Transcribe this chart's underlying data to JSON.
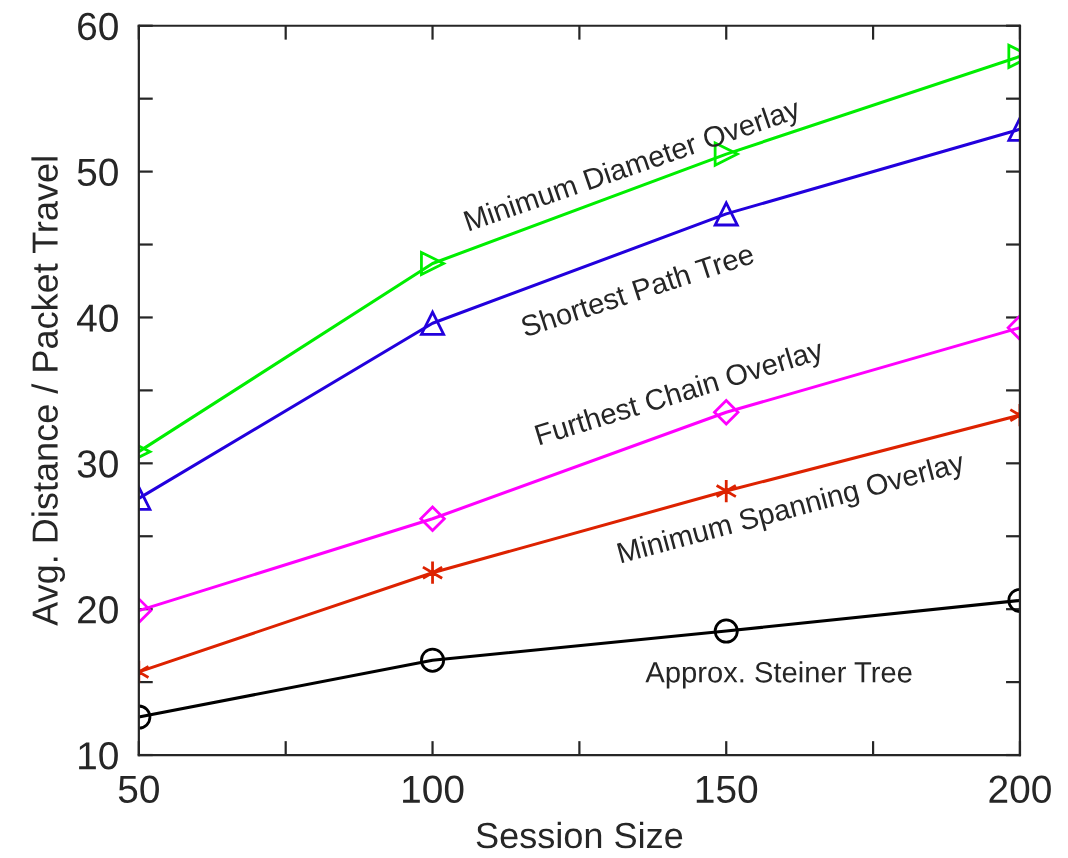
{
  "chart_data": {
    "type": "line",
    "xlabel": "Session Size",
    "ylabel": "Avg. Distance / Packet Travel",
    "x": [
      50,
      100,
      150,
      200
    ],
    "xlim": [
      50,
      200
    ],
    "xticks": [
      50,
      {
        "value": 75,
        "label": null
      },
      100,
      {
        "value": 125,
        "label": null
      },
      150,
      {
        "value": 175,
        "label": null
      },
      200
    ],
    "ylim": [
      10,
      60
    ],
    "yticks": [
      10,
      {
        "value": 15,
        "label": null
      },
      20,
      {
        "value": 25,
        "label": null
      },
      30,
      {
        "value": 35,
        "label": null
      },
      40,
      {
        "value": 45,
        "label": null
      },
      50,
      {
        "value": 55,
        "label": null
      },
      60
    ],
    "grid": false,
    "legend": false,
    "line_style": "solid",
    "series": [
      {
        "name": "Minimum Diameter Overlay",
        "color": "#00ee00",
        "marker": "triangle-right",
        "values": [
          30.8,
          43.7,
          51.2,
          57.9
        ]
      },
      {
        "name": "Shortest Path Tree",
        "color": "#2200dd",
        "marker": "triangle",
        "values": [
          27.6,
          39.6,
          47.1,
          52.9
        ]
      },
      {
        "name": "Furthest Chain Overlay",
        "color": "#ff00ff",
        "marker": "diamond",
        "values": [
          19.9,
          26.2,
          33.5,
          39.3
        ]
      },
      {
        "name": "Minimum Spanning Overlay",
        "color": "#dd2200",
        "marker": "cross",
        "values": [
          15.7,
          22.5,
          28.1,
          33.3
        ]
      },
      {
        "name": "Approx. Steiner Tree",
        "color": "#000000",
        "marker": "circle",
        "values": [
          12.6,
          16.5,
          18.5,
          20.6
        ]
      }
    ]
  }
}
